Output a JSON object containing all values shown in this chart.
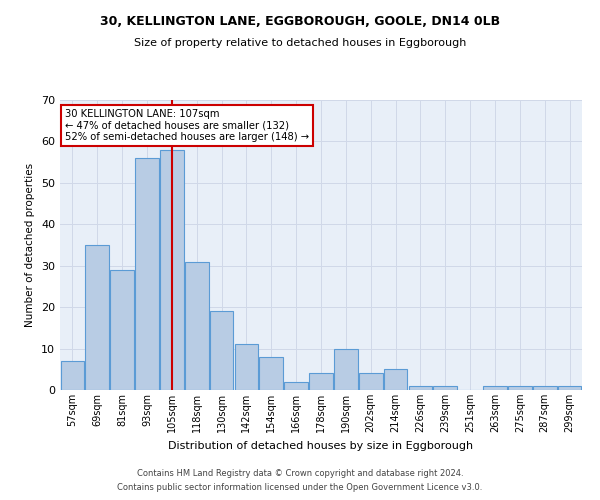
{
  "title1": "30, KELLINGTON LANE, EGGBOROUGH, GOOLE, DN14 0LB",
  "title2": "Size of property relative to detached houses in Eggborough",
  "xlabel": "Distribution of detached houses by size in Eggborough",
  "ylabel": "Number of detached properties",
  "categories": [
    "57sqm",
    "69sqm",
    "81sqm",
    "93sqm",
    "105sqm",
    "118sqm",
    "130sqm",
    "142sqm",
    "154sqm",
    "166sqm",
    "178sqm",
    "190sqm",
    "202sqm",
    "214sqm",
    "226sqm",
    "239sqm",
    "251sqm",
    "263sqm",
    "275sqm",
    "287sqm",
    "299sqm"
  ],
  "values": [
    7,
    35,
    29,
    56,
    58,
    31,
    19,
    11,
    8,
    2,
    4,
    10,
    4,
    5,
    1,
    1,
    0,
    1,
    1,
    1,
    1
  ],
  "bar_color": "#b8cce4",
  "bar_edge_color": "#5b9bd5",
  "annotation_text": "30 KELLINGTON LANE: 107sqm\n← 47% of detached houses are smaller (132)\n52% of semi-detached houses are larger (148) →",
  "annotation_box_color": "#ffffff",
  "annotation_box_edge": "#cc0000",
  "annotation_text_color": "#000000",
  "vline_color": "#cc0000",
  "vline_x": 4.5,
  "ylim": [
    0,
    70
  ],
  "yticks": [
    0,
    10,
    20,
    30,
    40,
    50,
    60,
    70
  ],
  "grid_color": "#d0d8e8",
  "bg_color": "#e8eff8",
  "footer1": "Contains HM Land Registry data © Crown copyright and database right 2024.",
  "footer2": "Contains public sector information licensed under the Open Government Licence v3.0."
}
